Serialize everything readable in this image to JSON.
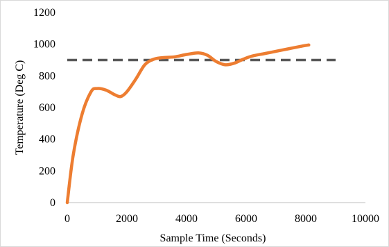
{
  "chart_data": {
    "type": "line",
    "xlabel": "Sample Time (Seconds)",
    "ylabel": "Temperature (Deg C)",
    "xlim": [
      0,
      10000
    ],
    "ylim": [
      0,
      1200
    ],
    "xticks": [
      0,
      2000,
      4000,
      6000,
      8000,
      10000
    ],
    "yticks": [
      0,
      200,
      400,
      600,
      800,
      1000,
      1200
    ],
    "grid": false,
    "legend": "none",
    "series": [
      {
        "color": "#ED7D31",
        "style": "solid",
        "x": [
          0,
          200,
          500,
          800,
          1000,
          1300,
          1600,
          1800,
          2000,
          2300,
          2600,
          2900,
          3200,
          3600,
          4000,
          4400,
          4700,
          5000,
          5300,
          5600,
          5900,
          6200,
          6600,
          7000,
          7400,
          7800,
          8100
        ],
        "y": [
          0,
          300,
          560,
          700,
          720,
          710,
          680,
          670,
          700,
          780,
          870,
          905,
          915,
          920,
          935,
          945,
          930,
          890,
          870,
          880,
          905,
          925,
          940,
          955,
          970,
          985,
          995
        ]
      },
      {
        "color": "#595959",
        "style": "dashed",
        "x": [
          0,
          9000
        ],
        "y": [
          900,
          900
        ]
      }
    ]
  }
}
